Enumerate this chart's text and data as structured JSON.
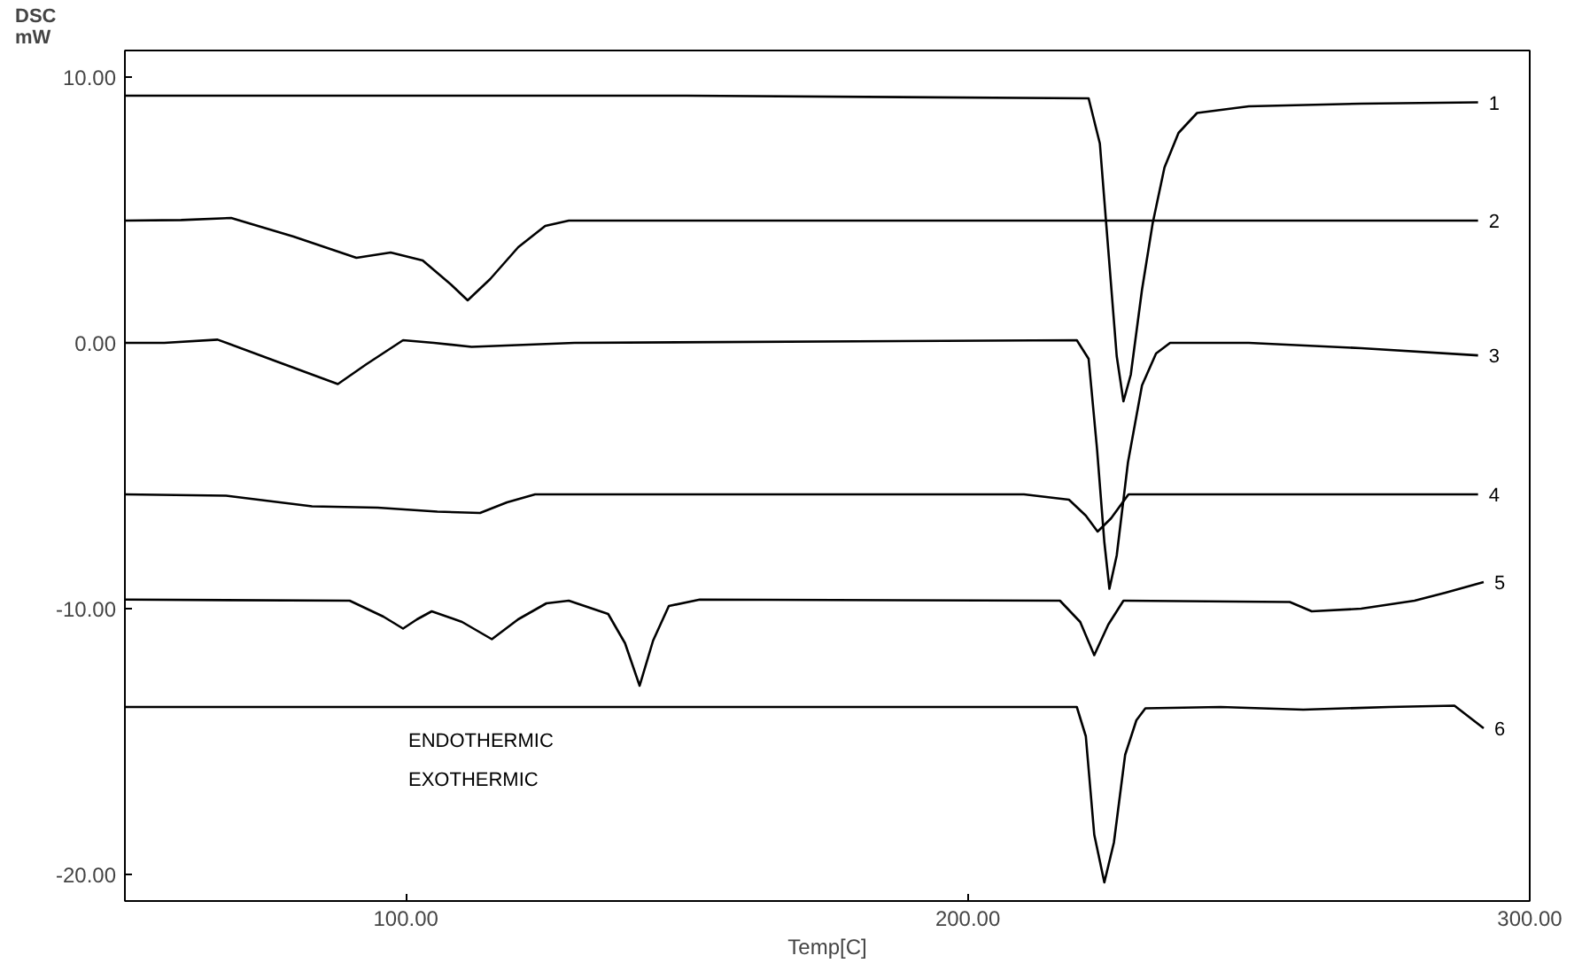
{
  "chart_data": {
    "type": "line",
    "xlabel": "Temp[C]",
    "ylabel": "DSC mW",
    "xlim": [
      50,
      300
    ],
    "ylim": [
      -21,
      11
    ],
    "xticks": [
      {
        "value": 100,
        "label": "100.00"
      },
      {
        "value": 200,
        "label": "200.00"
      },
      {
        "value": 300,
        "label": "300.00"
      }
    ],
    "yticks": [
      {
        "value": 10,
        "label": "10.00"
      },
      {
        "value": 0,
        "label": "0.00"
      },
      {
        "value": -10,
        "label": "-10.00"
      },
      {
        "value": -20,
        "label": "-20.00"
      }
    ],
    "grid": false,
    "marker": "none",
    "line_style": "solid",
    "annotations": [
      "ENDOTHERMIC",
      "EXOTHERMIC"
    ],
    "series": [
      {
        "name": "1",
        "color": "#000000",
        "x": [
          50,
          150,
          221.5,
          223.5,
          225,
          226.5,
          227.7,
          229,
          231,
          232.9,
          235,
          237.5,
          240.8,
          250,
          270,
          290.8
        ],
        "values": [
          9.3,
          9.3,
          9.2,
          7.5,
          3.5,
          -0.5,
          -2.2,
          -1.2,
          2.0,
          4.5,
          6.6,
          7.9,
          8.65,
          8.9,
          9.0,
          9.05
        ]
      },
      {
        "name": "2",
        "color": "#000000",
        "x": [
          50,
          60,
          68.9,
          80,
          91.2,
          97.3,
          103,
          108,
          111,
          115,
          120,
          124.8,
          129,
          200,
          290.8
        ],
        "values": [
          4.6,
          4.62,
          4.7,
          4.0,
          3.2,
          3.4,
          3.1,
          2.2,
          1.6,
          2.4,
          3.6,
          4.4,
          4.6,
          4.6,
          4.6
        ]
      },
      {
        "name": "3",
        "color": "#000000",
        "x": [
          50,
          57,
          66.5,
          77,
          87.9,
          93,
          99.5,
          105,
          111.7,
          130,
          219.4,
          221.5,
          223,
          224.3,
          225.2,
          226.5,
          228.5,
          231,
          233.5,
          236,
          250,
          270,
          290.8
        ],
        "values": [
          0,
          0,
          0.12,
          -0.7,
          -1.55,
          -0.8,
          0.1,
          0,
          -0.15,
          0,
          0.1,
          -0.6,
          -4.0,
          -7.5,
          -9.25,
          -8.0,
          -4.5,
          -1.6,
          -0.4,
          0,
          0,
          -0.2,
          -0.47
        ]
      },
      {
        "name": "4",
        "color": "#000000",
        "x": [
          50,
          68,
          83.3,
          95,
          105.6,
          113.2,
          118,
          123,
          210,
          218,
          221,
          223.1,
          225.5,
          228.6,
          240,
          290.8
        ],
        "values": [
          -5.7,
          -5.75,
          -6.15,
          -6.2,
          -6.35,
          -6.4,
          -6.0,
          -5.7,
          -5.7,
          -5.9,
          -6.5,
          -7.1,
          -6.6,
          -5.7,
          -5.7,
          -5.7
        ]
      },
      {
        "name": "5",
        "color": "#000000",
        "x": [
          50,
          90,
          96,
          99.5,
          102,
          104.6,
          110,
          115.3,
          120,
          125,
          129,
          136,
          139,
          141.6,
          144,
          146.8,
          152.3,
          216.4,
          220,
          222.5,
          225,
          227.7,
          257.3,
          261.2,
          270,
          279.5,
          285,
          291.8
        ],
        "values": [
          -9.66,
          -9.7,
          -10.3,
          -10.75,
          -10.4,
          -10.1,
          -10.5,
          -11.15,
          -10.4,
          -9.8,
          -9.7,
          -10.2,
          -11.3,
          -12.9,
          -11.2,
          -9.9,
          -9.66,
          -9.7,
          -10.5,
          -11.75,
          -10.6,
          -9.7,
          -9.75,
          -10.1,
          -10.0,
          -9.7,
          -9.4,
          -9.0
        ]
      },
      {
        "name": "6",
        "color": "#000000",
        "x": [
          50,
          150,
          219.4,
          221,
          222.5,
          224.3,
          226,
          228,
          230,
          231.6,
          245,
          259.7,
          275,
          286.6,
          291.8
        ],
        "values": [
          -13.7,
          -13.7,
          -13.7,
          -14.8,
          -18.5,
          -20.3,
          -18.8,
          -15.5,
          -14.2,
          -13.75,
          -13.7,
          -13.8,
          -13.7,
          -13.65,
          -14.5
        ]
      }
    ]
  }
}
